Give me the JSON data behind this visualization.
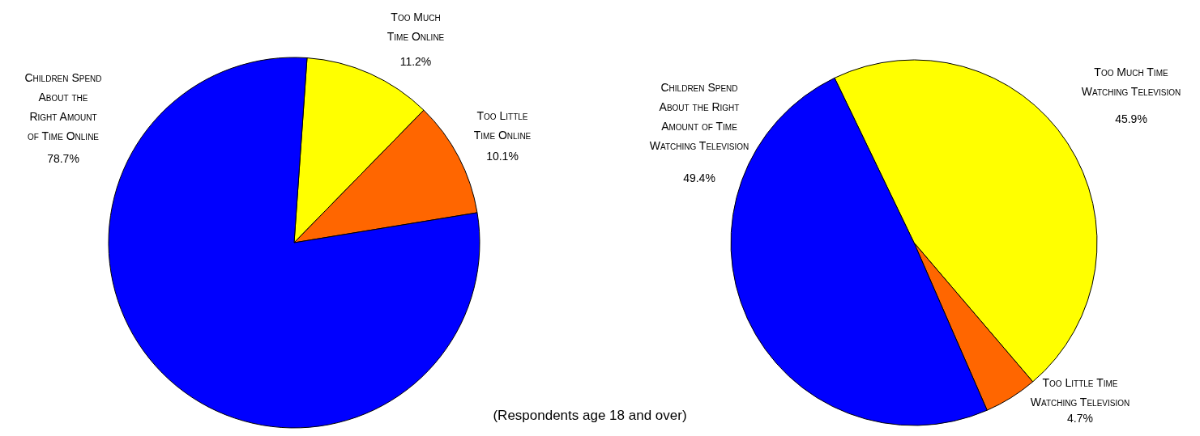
{
  "chart_data": [
    {
      "type": "pie",
      "categories": [
        "Too Much\nTime Online",
        "Too Little\nTime Online",
        "Children Spend\nAbout the\nRight Amount\nof Time Online"
      ],
      "values": [
        11.2,
        10.1,
        78.7
      ],
      "colors": [
        "#ffff00",
        "#ff6600",
        "#0000ff"
      ],
      "value_labels": [
        "11.2%",
        "10.1%",
        "78.7%"
      ],
      "annotations": [
        "(Respondents age 18 and over)"
      ]
    },
    {
      "type": "pie",
      "categories": [
        "Too Much Time\nWatching Television",
        "Too Little Time\nWatching Television",
        "Children Spend\nAbout the Right\nAmount of Time\nWatching Television"
      ],
      "values": [
        45.9,
        4.7,
        49.4
      ],
      "colors": [
        "#ffff00",
        "#ff6600",
        "#0000ff"
      ],
      "value_labels": [
        "45.9%",
        "4.7%",
        "49.4%"
      ]
    }
  ]
}
